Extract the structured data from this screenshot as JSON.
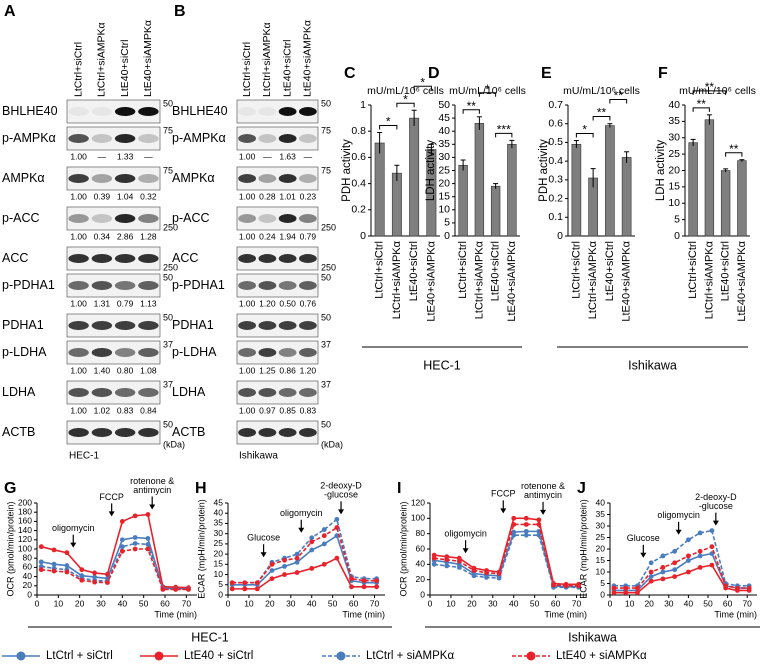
{
  "blots": [
    {
      "panel": "A",
      "lanes": [
        "LtCtrl+siCtrl",
        "LtCtrl+siAMPKα",
        "LtE40+siCtrl",
        "LtE40+siAMPKα"
      ],
      "rows": [
        {
          "label": "BHLHE40",
          "marker": "50"
        },
        {
          "label": "p-AMPKα",
          "marker": "75",
          "quant": [
            "1.00",
            "—",
            "1.33",
            "—"
          ]
        },
        {
          "label": "AMPKα",
          "marker": "75",
          "quant": [
            "1.00",
            "0.39",
            "1.04",
            "0.32"
          ]
        },
        {
          "label": "p-ACC",
          "marker": "250",
          "quant": [
            "1.00",
            "0.34",
            "2.86",
            "1.28"
          ]
        },
        {
          "label": "ACC",
          "marker": "250"
        },
        {
          "label": "p-PDHA1",
          "marker": "50",
          "quant": [
            "1.00",
            "1.31",
            "0.79",
            "1.13"
          ]
        },
        {
          "label": "PDHA1",
          "marker": "50"
        },
        {
          "label": "p-LDHA",
          "marker": "37",
          "quant": [
            "1.00",
            "1.40",
            "0.80",
            "1.08"
          ]
        },
        {
          "label": "LDHA",
          "marker": "37",
          "quant": [
            "1.00",
            "1.02",
            "0.83",
            "0.84"
          ]
        },
        {
          "label": "ACTB",
          "marker": "50"
        }
      ],
      "unit": "(kDa)",
      "cell_line": "HEC-1"
    },
    {
      "panel": "B",
      "lanes": [
        "LtCtrl+siCtrl",
        "LtCtrl+siAMPKα",
        "LtE40+siCtrl",
        "LtE40+siAMPKα"
      ],
      "rows": [
        {
          "label": "BHLHE40",
          "marker": "50"
        },
        {
          "label": "p-AMPKα",
          "marker": "75",
          "quant": [
            "1.00",
            "—",
            "1.63",
            "—"
          ]
        },
        {
          "label": "AMPKα",
          "marker": "75",
          "quant": [
            "1.00",
            "0.28",
            "1.01",
            "0.23"
          ]
        },
        {
          "label": "p-ACC",
          "marker": "250",
          "quant": [
            "1.00",
            "0.24",
            "1.94",
            "0.79"
          ]
        },
        {
          "label": "ACC",
          "marker": "250"
        },
        {
          "label": "p-PDHA1",
          "marker": "50",
          "quant": [
            "1.00",
            "1.20",
            "0.50",
            "0.76"
          ]
        },
        {
          "label": "PDHA1",
          "marker": "50"
        },
        {
          "label": "p-LDHA",
          "marker": "37",
          "quant": [
            "1.00",
            "1.25",
            "0.86",
            "1.20"
          ]
        },
        {
          "label": "LDHA",
          "marker": "37",
          "quant": [
            "1.00",
            "0.97",
            "0.85",
            "0.83"
          ]
        },
        {
          "label": "ACTB",
          "marker": "50"
        }
      ],
      "unit": "(kDa)",
      "cell_line": "Ishikawa"
    }
  ],
  "bar_groups": [
    "HEC-1",
    "Ishikawa"
  ],
  "line_groups": [
    "HEC-1",
    "Ishikawa"
  ],
  "chart_data": [
    {
      "type": "bar",
      "panel": "C",
      "unit": "mU/mL/10⁶ cells",
      "ylabel": "PDH activity",
      "color": "#7f7f7f",
      "categories": [
        "LtCtrl+siCtrl",
        "LtCtrl+siAMPKα",
        "LtE40+siCtrl",
        "LtE40+siAMPKα"
      ],
      "values": [
        0.71,
        0.48,
        0.9,
        0.66
      ],
      "errors": [
        0.08,
        0.06,
        0.06,
        0.04
      ],
      "ylim": [
        0,
        1
      ],
      "yticks": [
        0,
        0.2,
        0.4,
        0.6,
        0.8,
        1
      ],
      "annotations": [
        {
          "text": "*",
          "between": [
            "LtCtrl+siCtrl",
            "LtCtrl+siAMPKα"
          ]
        },
        {
          "text": "*",
          "between": [
            "LtCtrl+siAMPKα",
            "LtE40+siCtrl"
          ]
        },
        {
          "text": "*",
          "between": [
            "LtE40+siCtrl",
            "LtE40+siAMPKα"
          ]
        }
      ]
    },
    {
      "type": "bar",
      "panel": "D",
      "unit": "mU/mL/10⁶ cells",
      "ylabel": "LDH activity",
      "color": "#7f7f7f",
      "categories": [
        "LtCtrl+siCtrl",
        "LtCtrl+siAMPKα",
        "LtE40+siCtrl",
        "LtE40+siAMPKα"
      ],
      "values": [
        27,
        43,
        19,
        35
      ],
      "errors": [
        2,
        2.5,
        1,
        1.5
      ],
      "ylim": [
        0,
        50
      ],
      "yticks": [
        0,
        5,
        10,
        15,
        20,
        25,
        30,
        35,
        40,
        45,
        50
      ],
      "annotations": [
        {
          "text": "**",
          "between": [
            "LtCtrl+siCtrl",
            "LtCtrl+siAMPKα"
          ]
        },
        {
          "text": "***",
          "between": [
            "LtE40+siCtrl",
            "LtE40+siAMPKα"
          ]
        },
        {
          "text": "*",
          "between": [
            "LtCtrl+siAMPKα",
            "LtE40+siCtrl"
          ]
        }
      ]
    },
    {
      "type": "bar",
      "panel": "E",
      "unit": "mU/mL/10⁶ cells",
      "ylabel": "PDH activity",
      "color": "#7f7f7f",
      "categories": [
        "LtCtrl+siCtrl",
        "LtCtrl+siAMPKα",
        "LtE40+siCtrl",
        "LtE40+siAMPKα"
      ],
      "values": [
        0.49,
        0.31,
        0.59,
        0.42
      ],
      "errors": [
        0.02,
        0.05,
        0.01,
        0.03
      ],
      "ylim": [
        0,
        0.7
      ],
      "yticks": [
        0,
        0.1,
        0.2,
        0.3,
        0.4,
        0.5,
        0.6,
        0.7
      ],
      "annotations": [
        {
          "text": "*",
          "between": [
            "LtCtrl+siCtrl",
            "LtCtrl+siAMPKα"
          ]
        },
        {
          "text": "**",
          "between": [
            "LtCtrl+siAMPKα",
            "LtE40+siCtrl"
          ]
        },
        {
          "text": "**",
          "between": [
            "LtE40+siCtrl",
            "LtE40+siAMPKα"
          ]
        }
      ]
    },
    {
      "type": "bar",
      "panel": "F",
      "unit": "mU/mL/10⁶ cells",
      "ylabel": "LDH activity",
      "color": "#7f7f7f",
      "categories": [
        "LtCtrl+siCtrl",
        "LtCtrl+siAMPKα",
        "LtE40+siCtrl",
        "LtE40+siAMPKα"
      ],
      "values": [
        28.5,
        35.5,
        20,
        23
      ],
      "errors": [
        1,
        1.5,
        0.5,
        0.3
      ],
      "ylim": [
        0,
        40
      ],
      "yticks": [
        0,
        5,
        10,
        15,
        20,
        25,
        30,
        35,
        40
      ],
      "annotations": [
        {
          "text": "**",
          "between": [
            "LtCtrl+siCtrl",
            "LtCtrl+siAMPKα"
          ]
        },
        {
          "text": "**",
          "between": [
            "LtE40+siCtrl",
            "LtE40+siAMPKα"
          ]
        },
        {
          "text": "**",
          "between": [
            "LtCtrl+siCtrl",
            "LtE40+siCtrl"
          ]
        }
      ]
    },
    {
      "type": "line",
      "panel": "G",
      "ylabel": "OCR (pmol/min/protein)",
      "xlabel": "Time (min)",
      "x": [
        2,
        8,
        14,
        21,
        27,
        33,
        40,
        46,
        52,
        59,
        65,
        71
      ],
      "xlim": [
        0,
        75
      ],
      "xticks": [
        0,
        10,
        20,
        30,
        40,
        50,
        60,
        70
      ],
      "ylim": [
        0,
        200
      ],
      "yticks": [
        0,
        20,
        40,
        60,
        80,
        100,
        120,
        140,
        160,
        180,
        200
      ],
      "series": [
        {
          "name": "LtCtrl + siCtrl",
          "color": "#4a7cc0",
          "dash": false,
          "values": [
            72,
            67,
            64,
            42,
            39,
            36,
            120,
            125,
            123,
            15,
            14,
            14
          ]
        },
        {
          "name": "LtE40 + siCtrl",
          "color": "#e8222b",
          "dash": false,
          "values": [
            105,
            98,
            92,
            55,
            48,
            45,
            160,
            172,
            175,
            18,
            17,
            16
          ]
        },
        {
          "name": "LtCtrl + siAMPKα",
          "color": "#4a7cc0",
          "dash": true,
          "values": [
            62,
            58,
            55,
            36,
            32,
            30,
            105,
            112,
            110,
            14,
            13,
            13
          ]
        },
        {
          "name": "LtE40 + siAMPKα",
          "color": "#e8222b",
          "dash": true,
          "values": [
            55,
            52,
            50,
            32,
            28,
            27,
            95,
            100,
            100,
            12,
            12,
            12
          ]
        }
      ],
      "annotations": [
        {
          "text": [
            "oligomycin"
          ],
          "x": 17
        },
        {
          "text": [
            "FCCP"
          ],
          "x": 35
        },
        {
          "text": [
            "rotenone &",
            "antimycin"
          ],
          "x": 54
        }
      ]
    },
    {
      "type": "line",
      "panel": "H",
      "ylabel": "ECAR (mpH/min/protein)",
      "xlabel": "Time (min)",
      "x": [
        2,
        8,
        14,
        21,
        27,
        33,
        40,
        46,
        52,
        59,
        65,
        71
      ],
      "xlim": [
        0,
        75
      ],
      "xticks": [
        0,
        10,
        20,
        30,
        40,
        50,
        60,
        70
      ],
      "ylim": [
        0,
        45
      ],
      "yticks": [
        0,
        5,
        10,
        15,
        20,
        25,
        30,
        35,
        40,
        45
      ],
      "series": [
        {
          "color": "#4a7cc0",
          "dash": false,
          "values": [
            5,
            5,
            5,
            12,
            14,
            16,
            22,
            25,
            29,
            7,
            6,
            6
          ]
        },
        {
          "color": "#e8222b",
          "dash": false,
          "values": [
            3,
            3,
            3,
            8,
            10,
            11,
            13,
            15,
            18,
            4,
            4,
            4
          ]
        },
        {
          "color": "#4a7cc0",
          "dash": true,
          "values": [
            6,
            6,
            6,
            16,
            18,
            20,
            28,
            32,
            37,
            9,
            8,
            8
          ]
        },
        {
          "color": "#e8222b",
          "dash": true,
          "values": [
            6,
            6,
            6,
            15,
            17,
            18,
            26,
            29,
            33,
            8,
            7,
            7
          ]
        }
      ],
      "annotations": [
        {
          "text": [
            "Glucose"
          ],
          "x": 17
        },
        {
          "text": [
            "oligomycin"
          ],
          "x": 35
        },
        {
          "text": [
            "2-deoxy-D",
            "-glucose"
          ],
          "x": 54
        }
      ]
    },
    {
      "type": "line",
      "panel": "I",
      "ylabel": "OCR (pmol/min/protein)",
      "xlabel": "Time (min)",
      "x": [
        2,
        8,
        14,
        21,
        27,
        33,
        40,
        46,
        52,
        59,
        65,
        71
      ],
      "xlim": [
        0,
        75
      ],
      "xticks": [
        0,
        10,
        20,
        30,
        40,
        50,
        60,
        70
      ],
      "ylim": [
        0,
        120
      ],
      "yticks": [
        0,
        20,
        40,
        60,
        80,
        100,
        120
      ],
      "series": [
        {
          "color": "#4a7cc0",
          "dash": false,
          "values": [
            45,
            43,
            40,
            28,
            26,
            25,
            82,
            83,
            83,
            12,
            11,
            11
          ]
        },
        {
          "color": "#e8222b",
          "dash": false,
          "values": [
            52,
            50,
            48,
            35,
            32,
            30,
            100,
            100,
            98,
            15,
            14,
            14
          ]
        },
        {
          "color": "#4a7cc0",
          "dash": true,
          "values": [
            40,
            38,
            36,
            25,
            23,
            22,
            78,
            78,
            78,
            10,
            10,
            10
          ]
        },
        {
          "color": "#e8222b",
          "dash": true,
          "values": [
            48,
            46,
            44,
            32,
            29,
            28,
            92,
            92,
            92,
            13,
            12,
            12
          ]
        }
      ],
      "annotations": [
        {
          "text": [
            "oligomycin"
          ],
          "x": 17
        },
        {
          "text": [
            "FCCP"
          ],
          "x": 35
        },
        {
          "text": [
            "rotenone &",
            "antimycin"
          ],
          "x": 54
        }
      ]
    },
    {
      "type": "line",
      "panel": "J",
      "ylabel": "ECAR (mpH/min/protein)",
      "xlabel": "Time (min)",
      "x": [
        2,
        8,
        14,
        21,
        27,
        33,
        40,
        46,
        52,
        59,
        65,
        71
      ],
      "xlim": [
        0,
        75
      ],
      "xticks": [
        0,
        10,
        20,
        30,
        40,
        50,
        60,
        70
      ],
      "ylim": [
        0,
        40
      ],
      "yticks": [
        0,
        5,
        10,
        15,
        20,
        25,
        30,
        35,
        40
      ],
      "series": [
        {
          "color": "#4a7cc0",
          "dash": false,
          "values": [
            2,
            2,
            2,
            8,
            10,
            11,
            15,
            17,
            18,
            4,
            3,
            3
          ]
        },
        {
          "color": "#e8222b",
          "dash": false,
          "values": [
            1,
            1,
            1,
            6,
            7,
            8,
            10,
            12,
            13,
            3,
            2,
            2
          ]
        },
        {
          "color": "#4a7cc0",
          "dash": true,
          "values": [
            4,
            4,
            4,
            14,
            17,
            19,
            24,
            27,
            28,
            5,
            4,
            4
          ]
        },
        {
          "color": "#e8222b",
          "dash": true,
          "values": [
            3,
            3,
            3,
            10,
            12,
            14,
            17,
            19,
            21,
            4,
            3,
            3
          ]
        }
      ],
      "annotations": [
        {
          "text": [
            "Glucose"
          ],
          "x": 17
        },
        {
          "text": [
            "oligomycin"
          ],
          "x": 35
        },
        {
          "text": [
            "2-deoxy-D",
            "-glucose"
          ],
          "x": 54
        }
      ]
    }
  ]
}
